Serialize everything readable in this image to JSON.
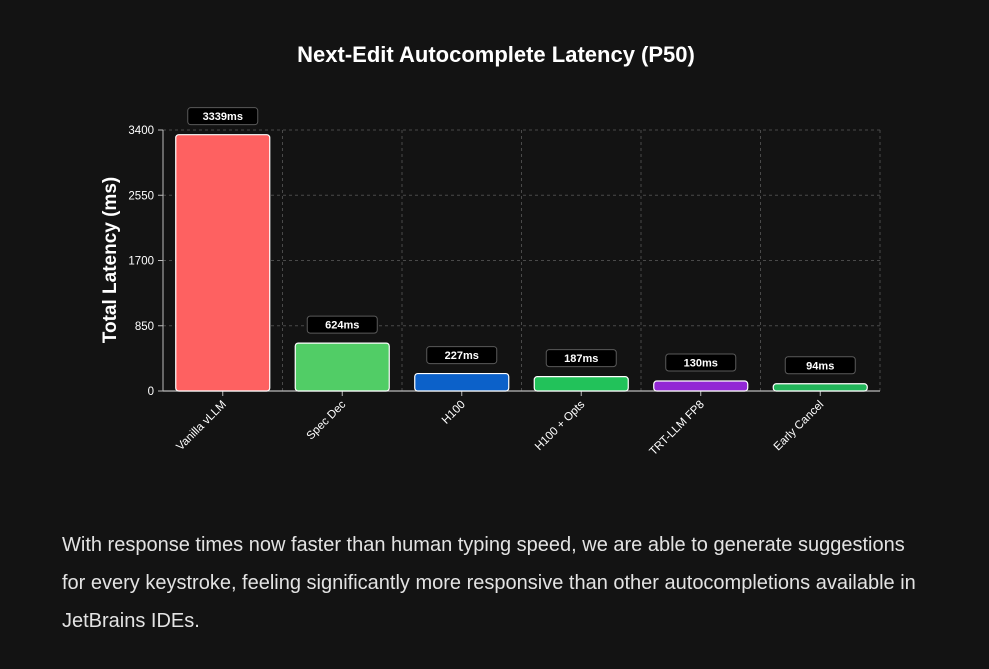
{
  "chart_data": {
    "type": "bar",
    "title": "Next-Edit Autocomplete Latency (P50)",
    "xlabel": "",
    "ylabel": "Total Latency (ms)",
    "ylim": [
      0,
      3400
    ],
    "yticks": [
      0,
      850,
      1700,
      2550,
      3400
    ],
    "ytick_labels": [
      "0",
      "850",
      "1700",
      "2550",
      "3400"
    ],
    "grid": true,
    "categories": [
      "Vanilla vLLM",
      "Spec Dec",
      "H100",
      "H100 + Opts",
      "TRT-LLM FP8",
      "Early Cancel"
    ],
    "values": [
      3339,
      624,
      227,
      187,
      130,
      94
    ],
    "data_labels": [
      "3339ms",
      "624ms",
      "227ms",
      "187ms",
      "130ms",
      "94ms"
    ],
    "colors": [
      "#fe6161",
      "#51cd66",
      "#0c61c9",
      "#22c25a",
      "#9227d4",
      "#22b55a"
    ]
  },
  "body_text": "With response times now faster than human typing speed, we are able to generate suggestions for every keystroke, feeling significantly more responsive than other autocompletions available in JetBrains IDEs."
}
